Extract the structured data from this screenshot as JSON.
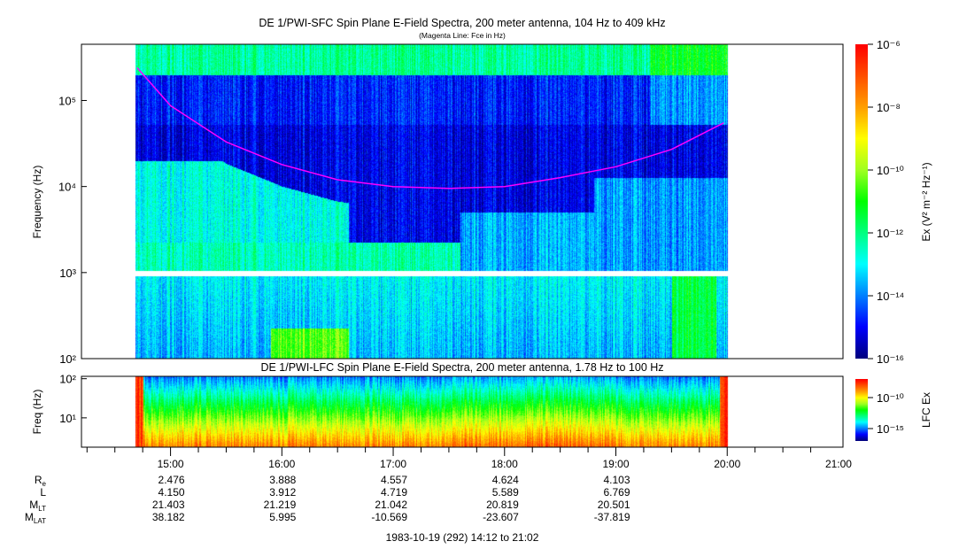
{
  "chart_data": [
    {
      "type": "heatmap",
      "title": "DE 1/PWI-SFC  Spin Plane E-Field Spectra, 200 meter antenna, 104 Hz to 409 kHz",
      "subtitle": "(Magenta Line: Fce in Hz)",
      "ylabel": "Frequency (Hz)",
      "yscale": "log",
      "ylim": [
        100,
        450000
      ],
      "yticks": [
        "10²",
        "10³",
        "10⁴",
        "10⁵"
      ],
      "ytick_values": [
        100,
        1000,
        10000,
        100000
      ],
      "data_time_range_hours": [
        14.68,
        20.0
      ],
      "colorbar": {
        "label": "Ex (V² m⁻² Hz⁻¹)",
        "scale": "log",
        "range": [
          -16,
          -6
        ],
        "ticks": [
          "10⁻⁶",
          "10⁻⁸",
          "10⁻¹⁰",
          "10⁻¹²",
          "10⁻¹⁴",
          "10⁻¹⁶"
        ],
        "tick_values": [
          -6,
          -8,
          -10,
          -12,
          -14,
          -16
        ]
      },
      "fce_line": {
        "color": "#ff00ff",
        "time_hours": [
          14.7,
          15.0,
          15.5,
          16.0,
          16.5,
          17.0,
          17.5,
          18.0,
          18.5,
          19.0,
          19.5,
          19.97
        ],
        "freq_hz": [
          240000,
          87000,
          33000,
          18000,
          12000,
          10000,
          9500,
          10000,
          12700,
          17000,
          27000,
          55000
        ]
      }
    },
    {
      "type": "heatmap",
      "title": "DE 1/PWI-LFC  Spin Plane E-Field Spectra, 200 meter antenna, 1.78 Hz to 100 Hz",
      "ylabel": "Freq (Hz)",
      "yscale": "log",
      "ylim": [
        1.78,
        115
      ],
      "yticks": [
        "10¹",
        "10²"
      ],
      "ytick_values": [
        10,
        100
      ],
      "data_time_range_hours": [
        14.68,
        20.0
      ],
      "colorbar": {
        "label": "LFC Ex",
        "scale": "log",
        "range": [
          -17,
          -7
        ],
        "ticks": [
          "10⁻¹⁰",
          "10⁻¹⁵"
        ],
        "tick_values": [
          -10,
          -15
        ]
      }
    }
  ],
  "time_axis": {
    "range_hours": [
      14.2,
      21.04
    ],
    "major_ticks": [
      "15:00",
      "16:00",
      "17:00",
      "18:00",
      "19:00",
      "20:00",
      "21:00"
    ],
    "major_values": [
      15,
      16,
      17,
      18,
      19,
      20,
      21
    ],
    "footer": "1983-10-19 (292) 14:12 to 21:02"
  },
  "orbit_table": [
    {
      "label": "R",
      "sub": "e",
      "values": [
        "2.476",
        "3.888",
        "4.557",
        "4.624",
        "4.103"
      ]
    },
    {
      "label": "L",
      "sub": "",
      "values": [
        "4.150",
        "3.912",
        "4.719",
        "5.589",
        "6.769"
      ]
    },
    {
      "label": "M",
      "sub": "LT",
      "values": [
        "21.403",
        "21.219",
        "21.042",
        "20.819",
        "20.501"
      ]
    },
    {
      "label": "M",
      "sub": "LAT",
      "values": [
        "38.182",
        "5.995",
        "-10.569",
        "-23.607",
        "-37.819"
      ]
    }
  ],
  "colormap": [
    "#00007f",
    "#0000ff",
    "#0080ff",
    "#00ffff",
    "#00ff80",
    "#00ff00",
    "#a0ff20",
    "#ffff00",
    "#ffa000",
    "#ff5000",
    "#ff0000"
  ]
}
